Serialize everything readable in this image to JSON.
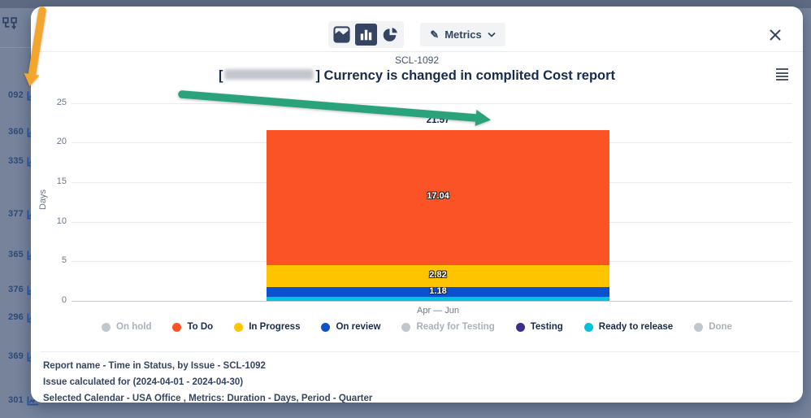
{
  "background": {
    "sidebar": {
      "items": [
        {
          "number": "092"
        },
        {
          "number": "360"
        },
        {
          "number": "335"
        },
        {
          "number": "377"
        },
        {
          "number": "365"
        },
        {
          "number": "376"
        },
        {
          "number": "296"
        },
        {
          "number": "369"
        },
        {
          "number": "301"
        }
      ]
    }
  },
  "modal": {
    "toolbar": {
      "chart_type_buttons": [
        {
          "name": "area-chart",
          "selected": false
        },
        {
          "name": "bar-chart",
          "selected": true
        },
        {
          "name": "pie-chart",
          "selected": false
        }
      ],
      "metrics_button": {
        "label": "Metrics",
        "icon": "pencil-icon"
      }
    },
    "header": {
      "issue_key": "SCL-1092",
      "title_prefix": "[",
      "title_suffix": "] Currency is changed in complited Cost report"
    },
    "footer": {
      "lines": [
        "Report name - Time in Status, by Issue - SCL-1092",
        "Issue calculated for (2024-04-01 - 2024-04-30)",
        "Selected Calendar - USA Office , Metrics: Duration - Days, Period - Quarter"
      ]
    }
  },
  "chart_data": {
    "type": "bar",
    "stacked": true,
    "title": "[redacted] Currency is changed in complited Cost report",
    "subtitle": "SCL-1092",
    "categories": [
      "Apr — Jun"
    ],
    "xlabel": "",
    "ylabel": "Days",
    "ylim": [
      0,
      25
    ],
    "yticks": [
      0,
      5,
      10,
      15,
      20,
      25
    ],
    "grid": true,
    "total": 21.57,
    "total_label": "21.57",
    "series_order": "top-to-bottom",
    "series": [
      {
        "name": "To Do",
        "value": 17.04,
        "label": "17.04",
        "color": "#fb5226"
      },
      {
        "name": "In Progress",
        "value": 2.82,
        "label": "2.82",
        "color": "#ffc400"
      },
      {
        "name": "On review",
        "value": 1.18,
        "label": "1.18",
        "color": "#0a51d0"
      },
      {
        "name": "Ready to release",
        "value": 0.53,
        "label": "",
        "color": "#00c4dd"
      }
    ],
    "legend_position": "bottom",
    "legend": [
      {
        "name": "On hold",
        "color": "#c1c7d0",
        "enabled": false
      },
      {
        "name": "To Do",
        "color": "#fb5226",
        "enabled": true
      },
      {
        "name": "In Progress",
        "color": "#ffc400",
        "enabled": true
      },
      {
        "name": "On review",
        "color": "#0a51d0",
        "enabled": true
      },
      {
        "name": "Ready for Testing",
        "color": "#c1c7d0",
        "enabled": false
      },
      {
        "name": "Testing",
        "color": "#3b2e90",
        "enabled": true
      },
      {
        "name": "Ready to release",
        "color": "#00c4dd",
        "enabled": true
      },
      {
        "name": "Done",
        "color": "#c1c7d0",
        "enabled": false
      }
    ]
  }
}
